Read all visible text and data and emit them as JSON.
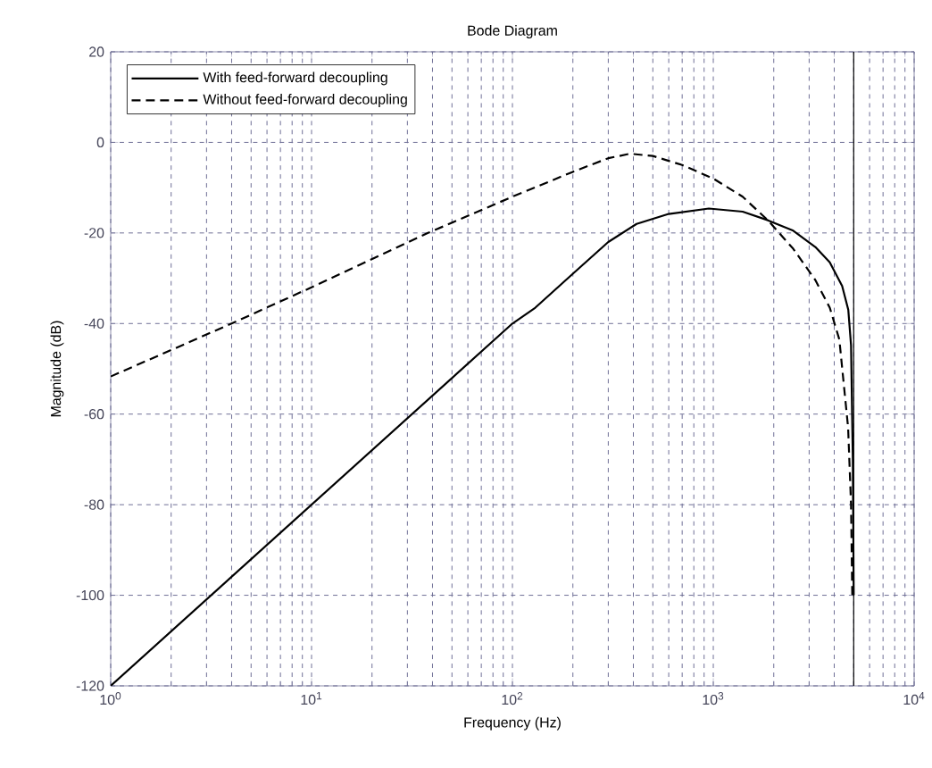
{
  "chart_data": {
    "type": "line",
    "title": "Bode Diagram",
    "xlabel": "Frequency  (Hz)",
    "ylabel": "Magnitude (dB)",
    "log": "x",
    "grid": true,
    "legend": "top left",
    "marker": "none",
    "xlim": [
      1,
      10000
    ],
    "ylim": [
      -120,
      20
    ],
    "xticks": [
      {
        "value": 1,
        "label": "10$^{0}$"
      },
      {
        "value": 10,
        "label": "10$^{1}$"
      },
      {
        "value": 100,
        "label": "10$^{2}$"
      },
      {
        "value": 1000,
        "label": "10$^{3}$"
      },
      {
        "value": 10000,
        "label": "10$^{4}$"
      }
    ],
    "yticks": [
      -120,
      -100,
      -80,
      -60,
      -40,
      -20,
      0,
      20
    ],
    "ref_lines": [
      {
        "axis": "x",
        "value": 5000,
        "color": "#000000"
      }
    ],
    "series": [
      {
        "name": "With feed-forward decoupling",
        "color": "#000000",
        "line_style": "solid",
        "x": [
          1,
          10,
          100,
          130,
          200,
          300,
          415,
          600,
          950,
          1400,
          1870,
          2500,
          3220,
          3800,
          4380,
          4700,
          4850,
          4950,
          5000
        ],
        "values": [
          -120,
          -80,
          -40,
          -36.5,
          -29,
          -22,
          -18,
          -15.8,
          -14.6,
          -15.3,
          -17.2,
          -19.5,
          -23.1,
          -26.5,
          -31.7,
          -37,
          -44.8,
          -70,
          -100
        ]
      },
      {
        "name": "Without feed-forward decoupling",
        "color": "#000000",
        "line_style": "dashed",
        "x": [
          1,
          4,
          10,
          38,
          100,
          200,
          300,
          386,
          500,
          700,
          1000,
          1400,
          1870,
          2500,
          3220,
          3800,
          4240,
          4690,
          4850,
          4920
        ],
        "values": [
          -51.7,
          -40,
          -32,
          -20,
          -12,
          -6.5,
          -3.5,
          -2.5,
          -3,
          -5,
          -8,
          -12,
          -17.2,
          -23.5,
          -30.4,
          -36.5,
          -43.5,
          -63,
          -80,
          -100
        ]
      }
    ]
  }
}
